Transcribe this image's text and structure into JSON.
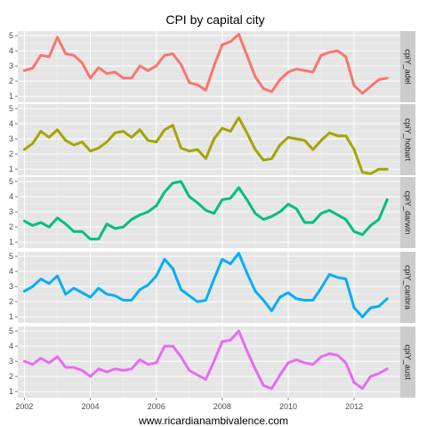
{
  "chart_data": {
    "type": "line",
    "title": "CPI by capital city",
    "caption": "www.ricardianambivalence.com",
    "x_ticks": [
      2002,
      2004,
      2006,
      2008,
      2010,
      2012
    ],
    "y_ticks": [
      1,
      2,
      3,
      4,
      5
    ],
    "xlim": [
      2001.8,
      2013.4
    ],
    "ylim": [
      0.6,
      5.3
    ],
    "grid": true,
    "x": [
      2002.0,
      2002.25,
      2002.5,
      2002.75,
      2003.0,
      2003.25,
      2003.5,
      2003.75,
      2004.0,
      2004.25,
      2004.5,
      2004.75,
      2005.0,
      2005.25,
      2005.5,
      2005.75,
      2006.0,
      2006.25,
      2006.5,
      2006.75,
      2007.0,
      2007.25,
      2007.5,
      2007.75,
      2008.0,
      2008.25,
      2008.5,
      2008.75,
      2009.0,
      2009.25,
      2009.5,
      2009.75,
      2010.0,
      2010.25,
      2010.5,
      2010.75,
      2011.0,
      2011.25,
      2011.5,
      2011.75,
      2012.0,
      2012.25,
      2012.5,
      2012.75,
      2013.0
    ],
    "series": [
      {
        "name": "cpiY_adel",
        "color": "#F8766D",
        "values": [
          2.7,
          2.85,
          3.7,
          3.6,
          4.9,
          3.8,
          3.7,
          3.2,
          2.2,
          2.9,
          2.5,
          2.6,
          2.2,
          2.2,
          3.0,
          2.7,
          3.0,
          3.7,
          3.8,
          3.1,
          1.9,
          1.75,
          1.4,
          3.0,
          4.4,
          4.6,
          5.1,
          3.7,
          2.3,
          1.5,
          1.3,
          2.1,
          2.6,
          2.8,
          2.7,
          2.6,
          3.7,
          3.9,
          4.0,
          3.6,
          1.7,
          1.2,
          1.65,
          2.1,
          2.2
        ]
      },
      {
        "name": "cpiY_hobart",
        "color": "#A3A500",
        "values": [
          2.3,
          2.7,
          3.5,
          3.1,
          3.6,
          2.9,
          2.6,
          2.8,
          2.2,
          2.4,
          2.8,
          3.4,
          3.5,
          3.1,
          3.6,
          2.9,
          2.8,
          3.6,
          3.9,
          2.4,
          2.2,
          2.3,
          1.7,
          3.0,
          3.7,
          3.5,
          4.4,
          3.4,
          2.3,
          1.6,
          1.7,
          2.6,
          3.1,
          3.0,
          2.9,
          2.3,
          2.9,
          3.4,
          3.2,
          3.2,
          2.3,
          0.8,
          0.7,
          1.0,
          1.0
        ]
      },
      {
        "name": "cpiY_darwin",
        "color": "#00BF7D",
        "values": [
          2.4,
          2.1,
          2.3,
          2.0,
          2.6,
          2.2,
          1.7,
          1.7,
          1.2,
          1.2,
          2.2,
          1.9,
          2.0,
          2.5,
          2.8,
          3.0,
          3.4,
          4.3,
          4.9,
          5.0,
          4.0,
          3.6,
          3.1,
          2.9,
          3.8,
          3.9,
          4.6,
          3.8,
          2.9,
          2.5,
          2.7,
          3.0,
          3.5,
          3.2,
          2.3,
          2.3,
          2.9,
          3.1,
          2.8,
          2.5,
          1.7,
          1.5,
          2.1,
          2.5,
          3.8
        ]
      },
      {
        "name": "cpiY_canbra",
        "color": "#00B0F6",
        "values": [
          2.7,
          3.0,
          3.5,
          3.2,
          3.7,
          2.5,
          2.9,
          2.6,
          2.3,
          2.9,
          2.5,
          2.4,
          2.1,
          2.1,
          2.8,
          3.1,
          3.7,
          4.8,
          4.2,
          2.8,
          2.4,
          2.0,
          2.1,
          3.5,
          4.8,
          4.5,
          5.2,
          3.9,
          2.7,
          2.1,
          1.4,
          2.3,
          2.6,
          2.2,
          2.1,
          2.1,
          2.9,
          3.8,
          3.6,
          3.5,
          1.6,
          1.0,
          1.6,
          1.7,
          2.2
        ]
      },
      {
        "name": "cpiY_aust",
        "color": "#E76BF3",
        "values": [
          3.0,
          2.8,
          3.2,
          2.9,
          3.3,
          2.6,
          2.6,
          2.4,
          2.0,
          2.5,
          2.3,
          2.5,
          2.4,
          2.5,
          3.1,
          2.8,
          2.9,
          4.0,
          4.0,
          3.3,
          2.4,
          2.1,
          1.8,
          3.0,
          4.3,
          4.4,
          5.0,
          3.7,
          2.5,
          1.4,
          1.2,
          2.1,
          2.9,
          3.1,
          2.9,
          2.8,
          3.3,
          3.5,
          3.4,
          2.9,
          1.6,
          1.2,
          2.0,
          2.2,
          2.5
        ]
      }
    ]
  }
}
